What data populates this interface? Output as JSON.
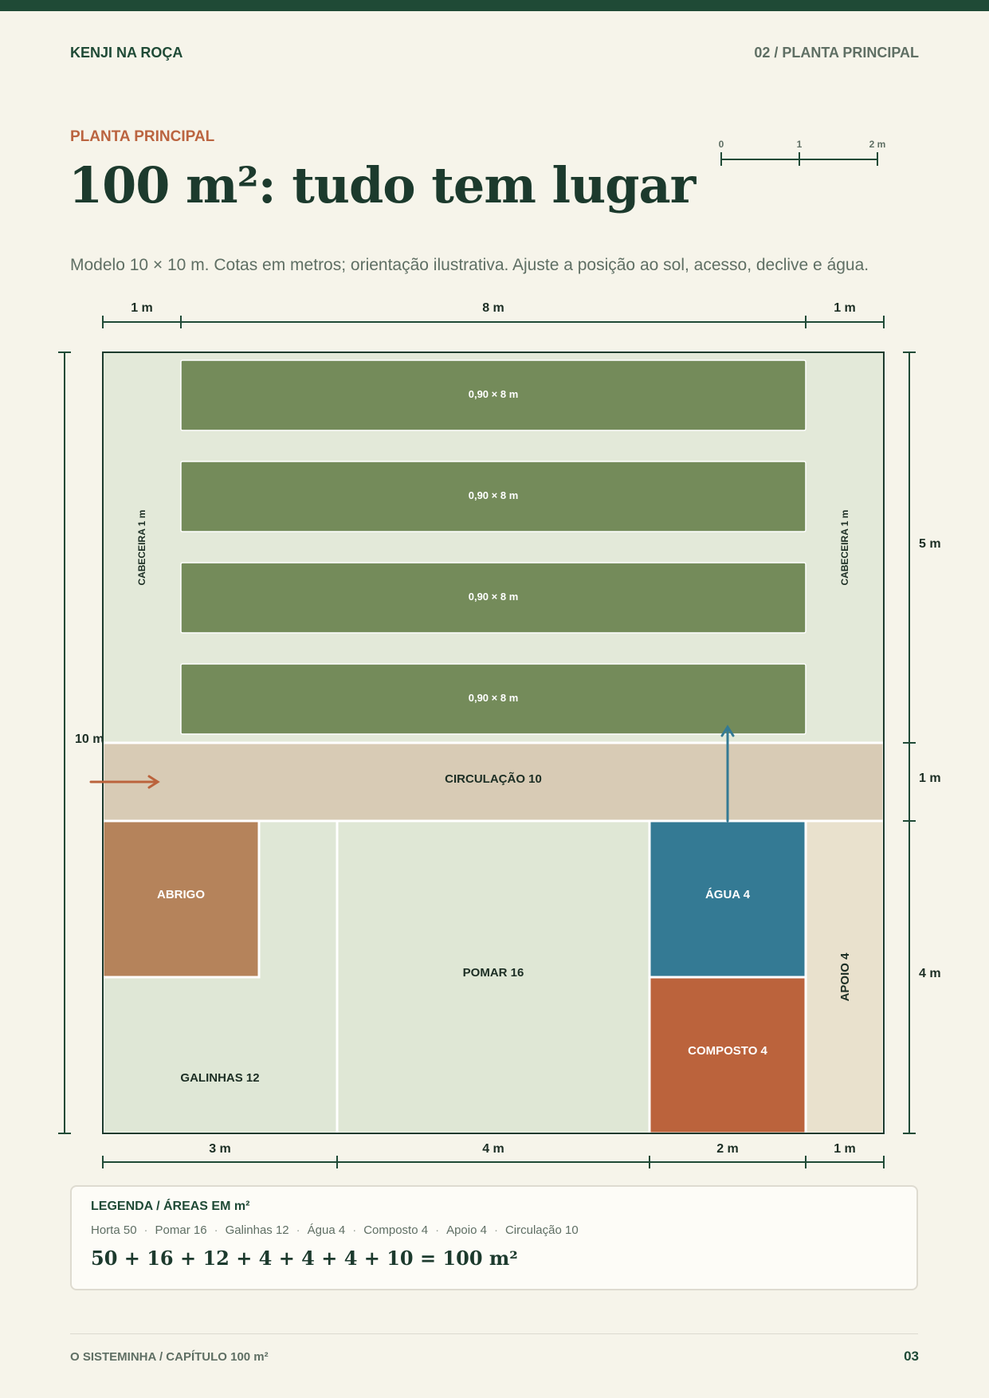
{
  "header": {
    "brand": "KENJI NA ROÇA",
    "section": "02 / PLANTA PRINCIPAL"
  },
  "page": {
    "kicker": "PLANTA PRINCIPAL",
    "title": "100 m²: tudo tem lugar",
    "subtitle": "Modelo 10 × 10 m. Cotas em metros; orientação ilustrativa. Ajuste a posição ao sol, acesso, declive e água."
  },
  "scale_bar": {
    "labels": [
      "0",
      "1",
      "2 m"
    ]
  },
  "plan": {
    "top_dims": [
      "1 m",
      "8 m",
      "1 m"
    ],
    "left_dim": "10 m",
    "right_dims": [
      "5 m",
      "1 m",
      "4 m"
    ],
    "bottom_dims": [
      "3 m",
      "4 m",
      "2 m",
      "1 m"
    ],
    "beds": [
      "0,90 × 8 m",
      "0,90 × 8 m",
      "0,90 × 8 m",
      "0,90 × 8 m"
    ],
    "headland_left": "CABECEIRA 1 m",
    "headland_right": "CABECEIRA 1 m",
    "zones": {
      "circulacao": "CIRCULAÇÃO 10",
      "abrigo": "ABRIGO",
      "galinhas": "GALINHAS 12",
      "pomar": "POMAR 16",
      "agua": "ÁGUA 4",
      "composto": "COMPOSTO 4",
      "apoio": "APOIO 4"
    },
    "colors": {
      "horta_ground": "#e3e9d9",
      "bed": "#748b5a",
      "circulation": "#d8cbb5",
      "shelter": "#b5835b",
      "chickens": "#dfe7d6",
      "orchard": "#dfe7d5",
      "water": "#347a94",
      "compost": "#bb633c",
      "support": "#e9e1cd",
      "entry_arrow": "#bb633c",
      "water_arrow": "#347a94"
    }
  },
  "legend": {
    "title": "LEGENDA  /  ÁREAS EM m²",
    "items": [
      "Horta 50",
      "Pomar 16",
      "Galinhas 12",
      "Água 4",
      "Composto 4",
      "Apoio 4",
      "Circulação 10"
    ],
    "sum": "50 + 16 + 12 + 4 + 4 + 4 + 10 = 100 m²"
  },
  "footer": {
    "left": "O SISTEMINHA / CAPÍTULO 100 m²",
    "page_number": "03"
  }
}
